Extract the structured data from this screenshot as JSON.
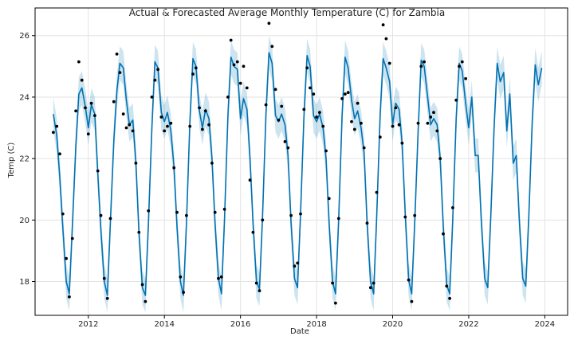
{
  "chart_data": {
    "type": "line",
    "title": "Actual & Forecasted Average Monthly Temperature (C) for Zambia",
    "xlabel": "Date",
    "ylabel": "Temp (C)",
    "xlim": [
      2010.6,
      2024.6
    ],
    "ylim": [
      16.9,
      26.9
    ],
    "grid": true,
    "x_ticks": [
      2012,
      2014,
      2016,
      2018,
      2020,
      2022,
      2024
    ],
    "y_ticks": [
      18,
      20,
      22,
      24,
      26
    ],
    "colors": {
      "forecast": "#0072B2",
      "interval": "#0072B2",
      "actual": "#000000"
    },
    "series": [
      {
        "kind": "actual-points",
        "points": [
          [
            2011.08,
            22.85
          ],
          [
            2011.17,
            23.05
          ],
          [
            2011.25,
            22.15
          ],
          [
            2011.33,
            20.2
          ],
          [
            2011.42,
            18.75
          ],
          [
            2011.5,
            17.5
          ],
          [
            2011.58,
            19.4
          ],
          [
            2011.67,
            23.55
          ],
          [
            2011.75,
            25.15
          ],
          [
            2011.83,
            24.55
          ],
          [
            2011.92,
            23.65
          ],
          [
            2012.0,
            22.8
          ],
          [
            2012.08,
            23.8
          ],
          [
            2012.17,
            23.4
          ],
          [
            2012.25,
            21.6
          ],
          [
            2012.33,
            20.15
          ],
          [
            2012.42,
            18.1
          ],
          [
            2012.5,
            17.45
          ],
          [
            2012.58,
            20.05
          ],
          [
            2012.67,
            23.85
          ],
          [
            2012.75,
            25.4
          ],
          [
            2012.83,
            24.8
          ],
          [
            2012.92,
            23.45
          ],
          [
            2013.0,
            23.0
          ],
          [
            2013.08,
            23.1
          ],
          [
            2013.17,
            22.9
          ],
          [
            2013.25,
            21.85
          ],
          [
            2013.33,
            19.6
          ],
          [
            2013.42,
            17.9
          ],
          [
            2013.5,
            17.35
          ],
          [
            2013.58,
            20.3
          ],
          [
            2013.67,
            24.0
          ],
          [
            2013.75,
            24.55
          ],
          [
            2013.83,
            24.9
          ],
          [
            2013.92,
            23.35
          ],
          [
            2014.0,
            22.9
          ],
          [
            2014.08,
            23.05
          ],
          [
            2014.17,
            23.15
          ],
          [
            2014.25,
            21.7
          ],
          [
            2014.33,
            20.25
          ],
          [
            2014.42,
            18.15
          ],
          [
            2014.5,
            17.65
          ],
          [
            2014.58,
            20.15
          ],
          [
            2014.67,
            23.05
          ],
          [
            2014.75,
            24.75
          ],
          [
            2014.83,
            24.95
          ],
          [
            2014.92,
            23.65
          ],
          [
            2015.0,
            22.95
          ],
          [
            2015.08,
            23.55
          ],
          [
            2015.17,
            23.1
          ],
          [
            2015.25,
            21.85
          ],
          [
            2015.33,
            20.25
          ],
          [
            2015.42,
            18.1
          ],
          [
            2015.5,
            18.15
          ],
          [
            2015.58,
            20.35
          ],
          [
            2015.67,
            24.0
          ],
          [
            2015.75,
            25.85
          ],
          [
            2015.83,
            25.05
          ],
          [
            2015.92,
            25.15
          ],
          [
            2016.0,
            24.45
          ],
          [
            2016.08,
            25.0
          ],
          [
            2016.17,
            24.3
          ],
          [
            2016.25,
            21.3
          ],
          [
            2016.33,
            19.6
          ],
          [
            2016.42,
            17.95
          ],
          [
            2016.5,
            17.7
          ],
          [
            2016.58,
            20.0
          ],
          [
            2016.67,
            23.75
          ],
          [
            2016.75,
            26.4
          ],
          [
            2016.83,
            25.65
          ],
          [
            2016.92,
            24.25
          ],
          [
            2017.0,
            23.25
          ],
          [
            2017.08,
            23.7
          ],
          [
            2017.17,
            22.55
          ],
          [
            2017.25,
            22.35
          ],
          [
            2017.33,
            20.15
          ],
          [
            2017.42,
            18.5
          ],
          [
            2017.5,
            18.6
          ],
          [
            2017.58,
            20.2
          ],
          [
            2017.67,
            23.6
          ],
          [
            2017.75,
            24.95
          ],
          [
            2017.83,
            24.3
          ],
          [
            2017.92,
            24.1
          ],
          [
            2018.0,
            23.35
          ],
          [
            2018.08,
            23.5
          ],
          [
            2018.17,
            23.05
          ],
          [
            2018.25,
            22.25
          ],
          [
            2018.33,
            20.7
          ],
          [
            2018.42,
            17.95
          ],
          [
            2018.5,
            17.3
          ],
          [
            2018.58,
            20.05
          ],
          [
            2018.67,
            23.95
          ],
          [
            2018.75,
            24.1
          ],
          [
            2018.83,
            24.15
          ],
          [
            2018.92,
            23.2
          ],
          [
            2019.0,
            22.95
          ],
          [
            2019.08,
            23.8
          ],
          [
            2019.17,
            23.15
          ],
          [
            2019.25,
            22.35
          ],
          [
            2019.33,
            19.9
          ],
          [
            2019.42,
            17.8
          ],
          [
            2019.5,
            17.95
          ],
          [
            2019.58,
            20.9
          ],
          [
            2019.67,
            22.7
          ],
          [
            2019.75,
            26.35
          ],
          [
            2019.83,
            25.9
          ],
          [
            2019.92,
            25.1
          ],
          [
            2020.0,
            23.05
          ],
          [
            2020.08,
            23.65
          ],
          [
            2020.17,
            23.1
          ],
          [
            2020.25,
            22.5
          ],
          [
            2020.33,
            20.1
          ],
          [
            2020.42,
            18.05
          ],
          [
            2020.5,
            17.35
          ],
          [
            2020.58,
            20.15
          ],
          [
            2020.67,
            23.15
          ],
          [
            2020.75,
            25.0
          ],
          [
            2020.83,
            25.15
          ],
          [
            2020.92,
            23.15
          ],
          [
            2021.0,
            23.35
          ],
          [
            2021.08,
            23.5
          ],
          [
            2021.17,
            22.9
          ],
          [
            2021.25,
            22.0
          ],
          [
            2021.33,
            19.55
          ],
          [
            2021.42,
            17.85
          ],
          [
            2021.5,
            17.45
          ],
          [
            2021.58,
            20.4
          ],
          [
            2021.67,
            23.9
          ],
          [
            2021.75,
            25.0
          ],
          [
            2021.83,
            25.15
          ],
          [
            2021.92,
            24.6
          ]
        ]
      },
      {
        "kind": "forecast-line",
        "points": [
          [
            2011.08,
            23.45
          ],
          [
            2011.17,
            22.75
          ],
          [
            2011.25,
            21.4
          ],
          [
            2011.33,
            19.75
          ],
          [
            2011.42,
            18.0
          ],
          [
            2011.5,
            17.6
          ],
          [
            2011.58,
            19.8
          ],
          [
            2011.67,
            22.4
          ],
          [
            2011.75,
            24.1
          ],
          [
            2011.83,
            24.3
          ],
          [
            2011.92,
            23.7
          ],
          [
            2012.0,
            23.0
          ],
          [
            2012.08,
            23.75
          ],
          [
            2012.17,
            23.45
          ],
          [
            2012.25,
            21.5
          ],
          [
            2012.33,
            19.7
          ],
          [
            2012.42,
            18.0
          ],
          [
            2012.5,
            17.55
          ],
          [
            2012.58,
            19.95
          ],
          [
            2012.67,
            22.6
          ],
          [
            2012.75,
            24.2
          ],
          [
            2012.83,
            25.1
          ],
          [
            2012.92,
            24.95
          ],
          [
            2013.0,
            23.9
          ],
          [
            2013.08,
            23.1
          ],
          [
            2013.17,
            23.25
          ],
          [
            2013.25,
            21.9
          ],
          [
            2013.33,
            19.6
          ],
          [
            2013.42,
            17.8
          ],
          [
            2013.5,
            17.55
          ],
          [
            2013.58,
            19.9
          ],
          [
            2013.67,
            23.0
          ],
          [
            2013.75,
            25.15
          ],
          [
            2013.83,
            24.95
          ],
          [
            2013.92,
            23.5
          ],
          [
            2014.0,
            23.2
          ],
          [
            2014.08,
            23.5
          ],
          [
            2014.17,
            22.9
          ],
          [
            2014.25,
            21.75
          ],
          [
            2014.33,
            19.8
          ],
          [
            2014.42,
            18.0
          ],
          [
            2014.5,
            17.55
          ],
          [
            2014.58,
            19.9
          ],
          [
            2014.67,
            23.2
          ],
          [
            2014.75,
            25.25
          ],
          [
            2014.83,
            25.0
          ],
          [
            2014.92,
            23.55
          ],
          [
            2015.0,
            23.0
          ],
          [
            2015.08,
            23.6
          ],
          [
            2015.17,
            23.3
          ],
          [
            2015.25,
            22.0
          ],
          [
            2015.33,
            19.9
          ],
          [
            2015.42,
            18.1
          ],
          [
            2015.5,
            17.6
          ],
          [
            2015.58,
            20.0
          ],
          [
            2015.67,
            23.4
          ],
          [
            2015.75,
            25.3
          ],
          [
            2015.83,
            25.0
          ],
          [
            2015.92,
            24.9
          ],
          [
            2016.0,
            23.3
          ],
          [
            2016.08,
            23.95
          ],
          [
            2016.17,
            23.6
          ],
          [
            2016.25,
            22.0
          ],
          [
            2016.33,
            19.9
          ],
          [
            2016.42,
            18.0
          ],
          [
            2016.5,
            17.75
          ],
          [
            2016.58,
            20.1
          ],
          [
            2016.67,
            23.45
          ],
          [
            2016.75,
            25.45
          ],
          [
            2016.83,
            25.1
          ],
          [
            2016.92,
            23.4
          ],
          [
            2017.0,
            23.2
          ],
          [
            2017.08,
            23.45
          ],
          [
            2017.17,
            23.1
          ],
          [
            2017.25,
            22.1
          ],
          [
            2017.33,
            19.9
          ],
          [
            2017.42,
            18.1
          ],
          [
            2017.5,
            17.8
          ],
          [
            2017.58,
            20.2
          ],
          [
            2017.67,
            23.4
          ],
          [
            2017.75,
            25.35
          ],
          [
            2017.83,
            25.0
          ],
          [
            2017.92,
            23.4
          ],
          [
            2018.0,
            23.2
          ],
          [
            2018.08,
            23.45
          ],
          [
            2018.17,
            23.0
          ],
          [
            2018.25,
            22.0
          ],
          [
            2018.33,
            19.9
          ],
          [
            2018.42,
            18.0
          ],
          [
            2018.5,
            17.6
          ],
          [
            2018.58,
            20.0
          ],
          [
            2018.67,
            23.4
          ],
          [
            2018.75,
            25.3
          ],
          [
            2018.83,
            24.95
          ],
          [
            2018.92,
            23.9
          ],
          [
            2019.0,
            23.3
          ],
          [
            2019.08,
            23.55
          ],
          [
            2019.17,
            23.0
          ],
          [
            2019.25,
            22.2
          ],
          [
            2019.33,
            19.9
          ],
          [
            2019.42,
            18.0
          ],
          [
            2019.5,
            17.6
          ],
          [
            2019.58,
            20.1
          ],
          [
            2019.67,
            23.4
          ],
          [
            2019.75,
            25.25
          ],
          [
            2019.83,
            24.95
          ],
          [
            2019.92,
            24.5
          ],
          [
            2020.0,
            23.1
          ],
          [
            2020.08,
            23.8
          ],
          [
            2020.17,
            23.6
          ],
          [
            2020.25,
            22.5
          ],
          [
            2020.33,
            20.2
          ],
          [
            2020.42,
            18.05
          ],
          [
            2020.5,
            17.6
          ],
          [
            2020.58,
            19.9
          ],
          [
            2020.67,
            22.9
          ],
          [
            2020.75,
            25.2
          ],
          [
            2020.83,
            25.0
          ],
          [
            2020.92,
            24.0
          ],
          [
            2021.0,
            23.1
          ],
          [
            2021.08,
            23.3
          ],
          [
            2021.17,
            23.1
          ],
          [
            2021.25,
            22.0
          ],
          [
            2021.33,
            19.8
          ],
          [
            2021.42,
            17.9
          ],
          [
            2021.5,
            17.6
          ],
          [
            2021.58,
            20.0
          ],
          [
            2021.67,
            23.3
          ],
          [
            2021.75,
            25.1
          ],
          [
            2021.83,
            24.85
          ],
          [
            2021.92,
            23.8
          ],
          [
            2022.0,
            23.0
          ],
          [
            2022.08,
            24.0
          ],
          [
            2022.17,
            22.1
          ],
          [
            2022.25,
            22.1
          ],
          [
            2022.33,
            20.0
          ],
          [
            2022.42,
            18.1
          ],
          [
            2022.5,
            17.8
          ],
          [
            2022.58,
            20.1
          ],
          [
            2022.67,
            23.1
          ],
          [
            2022.75,
            25.1
          ],
          [
            2022.83,
            24.5
          ],
          [
            2022.92,
            24.8
          ],
          [
            2023.0,
            22.9
          ],
          [
            2023.08,
            24.1
          ],
          [
            2023.17,
            21.85
          ],
          [
            2023.25,
            22.1
          ],
          [
            2023.33,
            20.0
          ],
          [
            2023.42,
            18.1
          ],
          [
            2023.5,
            17.85
          ],
          [
            2023.58,
            20.1
          ],
          [
            2023.67,
            23.2
          ],
          [
            2023.75,
            25.05
          ],
          [
            2023.83,
            24.4
          ],
          [
            2023.92,
            24.95
          ]
        ]
      }
    ]
  }
}
